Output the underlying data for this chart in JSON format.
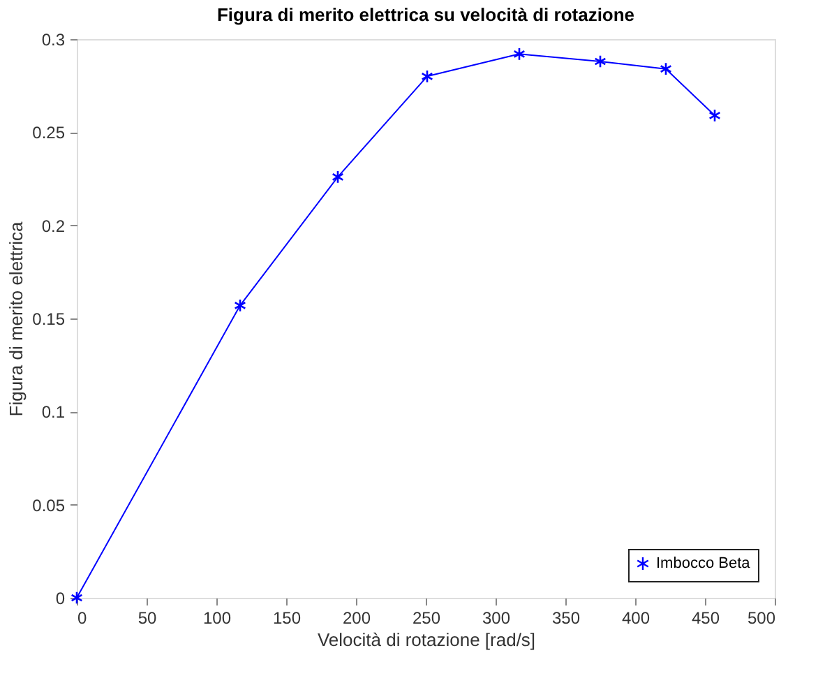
{
  "chart_data": {
    "type": "line",
    "title": "Figura di merito elettrica su velocità di rotazione",
    "xlabel": "Velocità di rotazione [rad/s]",
    "ylabel": "Figura di merito elettrica",
    "x": [
      0,
      117,
      187,
      251,
      317,
      375,
      422,
      457
    ],
    "series": [
      {
        "name": "Imbocco Beta",
        "color": "#0000ff",
        "values": [
          0,
          0.157,
          0.226,
          0.28,
          0.292,
          0.288,
          0.284,
          0.259
        ]
      }
    ],
    "xlim": [
      0,
      500
    ],
    "xticks": [
      0,
      50,
      100,
      150,
      200,
      250,
      300,
      350,
      400,
      450,
      500
    ],
    "ylim": [
      0,
      0.3
    ],
    "yticks": [
      0,
      0.05,
      0.1,
      0.15,
      0.2,
      0.25,
      0.3
    ],
    "grid": false,
    "legend": "bottom right",
    "marker": "cross",
    "line_style": "solid"
  }
}
